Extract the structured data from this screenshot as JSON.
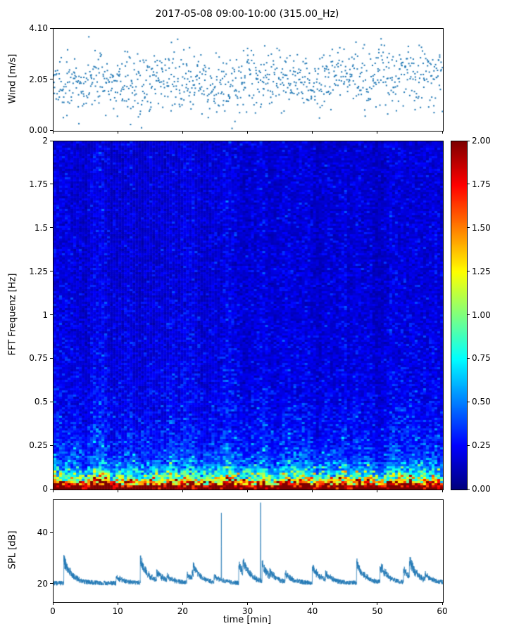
{
  "title": "2017-05-08 09:00-10:00 (315.00_Hz)",
  "chart_data": [
    {
      "type": "scatter",
      "name": "wind-speed",
      "ylabel": "Wind [m/s]",
      "ylim": [
        0.0,
        4.1
      ],
      "yticks": [
        "0.00",
        "2.05",
        "4.10"
      ],
      "xlim": [
        0,
        60
      ],
      "marker_color": "#1f77b4",
      "n_points": 950,
      "mean": 2.05,
      "std": 0.8,
      "description": "Dense cloud of small wind-speed sample markers fluctuating around ~2 m/s over the hour, spanning roughly 0.2 to 4.1 m/s"
    },
    {
      "type": "heatmap",
      "name": "fft-spectrogram",
      "ylabel": "FFT Frequenz [Hz]",
      "ylim": [
        0,
        2
      ],
      "yticks": [
        "0",
        "0.25",
        "0.5",
        "0.75",
        "1",
        "1.25",
        "1.5",
        "1.75",
        "2"
      ],
      "xlim": [
        0,
        60
      ],
      "colormap": "jet",
      "clim": [
        0.0,
        2.0
      ],
      "colorbar_ticks": [
        "0.00",
        "0.25",
        "0.50",
        "0.75",
        "1.00",
        "1.25",
        "1.50",
        "1.75",
        "2.00"
      ],
      "description": "Spectrogram mostly dark blue (values ~0.1-0.35) above 0.3 Hz; energy rises sharply below ~0.25 Hz with cyan/green/yellow speckle and a near-continuous dark-red band at the very bottom (values near 2)"
    },
    {
      "type": "line",
      "name": "spl",
      "ylabel": "SPL [dB]",
      "xlabel": "time [min]",
      "ylim": [
        13,
        53
      ],
      "yticks": [
        "20",
        "40"
      ],
      "xlim": [
        0,
        60
      ],
      "xticks": [
        "0",
        "10",
        "20",
        "30",
        "40",
        "50",
        "60"
      ],
      "line_color": "#1f77b4",
      "baseline": 20,
      "spikes": [
        {
          "t": 25.85,
          "y": 48
        },
        {
          "t": 31.9,
          "y": 52
        }
      ],
      "description": "Noisy SPL trace with baseline near 20 dB, repeated humps reaching ~28-35 dB, and two narrow spikes near 26 and 32 min reaching ~50 dB"
    }
  ]
}
